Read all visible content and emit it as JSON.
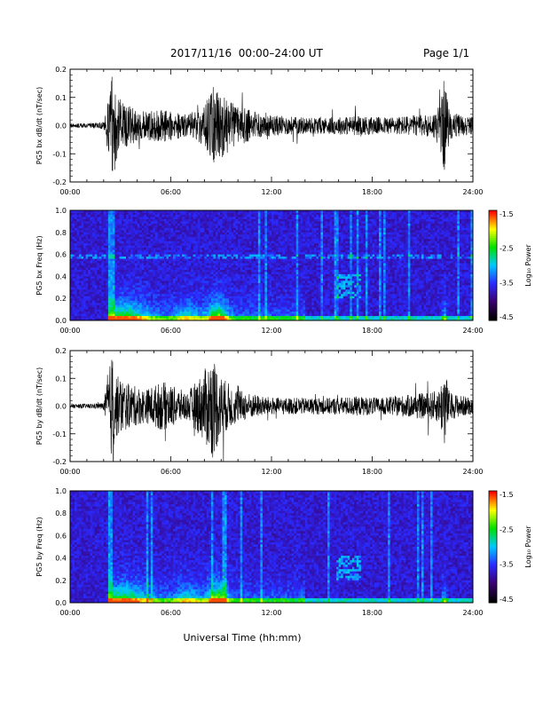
{
  "page": {
    "title": "2017/11/16  00:00–24:00 UT",
    "page_label": "Page 1/1",
    "xlabel": "Universal Time (hh:mm)"
  },
  "colorbar": {
    "label": "Log₁₀ Power",
    "ticks": [
      "-1.5",
      "-2.5",
      "-3.5",
      "-4.5"
    ],
    "range": [
      -4.5,
      -1.5
    ],
    "colormap": [
      "#000000",
      "#3a0070",
      "#2a2aff",
      "#00c8ff",
      "#00e000",
      "#ffff00",
      "#ff0000"
    ]
  },
  "chart_data": [
    {
      "type": "line",
      "id": "bx-waveform",
      "ylabel": "PG5 bx dB/dt (nT/sec)",
      "xlim": [
        0,
        24
      ],
      "ylim": [
        -0.2,
        0.2
      ],
      "xticks": [
        "00:00",
        "06:00",
        "12:00",
        "18:00",
        "24:00"
      ],
      "yticks": [
        "0.2",
        "0.1",
        "0.0",
        "-0.1",
        "-0.2"
      ],
      "envelope": {
        "x": [
          0,
          1,
          2,
          2.3,
          2.5,
          2.8,
          3.5,
          4.5,
          5.5,
          6.2,
          7.0,
          8.0,
          8.5,
          9.0,
          9.5,
          10.0,
          10.5,
          11.5,
          12.5,
          14.0,
          15.5,
          17.0,
          18.5,
          20.0,
          21.5,
          22.0,
          22.3,
          22.6,
          23.2,
          24.0
        ],
        "amp": [
          0.008,
          0.008,
          0.012,
          0.1,
          0.2,
          0.12,
          0.07,
          0.05,
          0.06,
          0.05,
          0.04,
          0.07,
          0.14,
          0.12,
          0.09,
          0.07,
          0.06,
          0.04,
          0.035,
          0.03,
          0.03,
          0.035,
          0.03,
          0.035,
          0.04,
          0.07,
          0.17,
          0.05,
          0.04,
          0.03
        ]
      },
      "color": "#000000"
    },
    {
      "type": "heatmap",
      "id": "bx-spectrogram",
      "ylabel": "PG5 bx Freq (Hz)",
      "xlim": [
        0,
        24
      ],
      "ylim": [
        0,
        1.0
      ],
      "xticks": [
        "00:00",
        "06:00",
        "12:00",
        "18:00",
        "24:00"
      ],
      "yticks": [
        "1.0",
        "0.8",
        "0.6",
        "0.4",
        "0.2",
        "0.0"
      ],
      "value_range": [
        -4.5,
        -1.5
      ]
    },
    {
      "type": "line",
      "id": "by-waveform",
      "ylabel": "PG5 by dB/dt (nT/sec)",
      "xlim": [
        0,
        24
      ],
      "ylim": [
        -0.2,
        0.2
      ],
      "xticks": [
        "00:00",
        "06:00",
        "12:00",
        "18:00",
        "24:00"
      ],
      "yticks": [
        "0.2",
        "0.1",
        "0.0",
        "-0.1",
        "-0.2"
      ],
      "envelope": {
        "x": [
          0,
          1,
          2,
          2.3,
          2.5,
          2.8,
          3.5,
          4.5,
          5.5,
          6.2,
          7.0,
          8.0,
          8.5,
          9.0,
          9.5,
          10.0,
          10.5,
          11.5,
          12.5,
          14.0,
          15.5,
          17.0,
          18.5,
          20.0,
          21.5,
          22.0,
          22.3,
          22.6,
          23.2,
          24.0
        ],
        "amp": [
          0.008,
          0.008,
          0.012,
          0.12,
          0.2,
          0.11,
          0.08,
          0.06,
          0.09,
          0.07,
          0.05,
          0.13,
          0.19,
          0.11,
          0.08,
          0.06,
          0.05,
          0.035,
          0.03,
          0.03,
          0.03,
          0.035,
          0.03,
          0.04,
          0.05,
          0.06,
          0.15,
          0.05,
          0.04,
          0.03
        ]
      },
      "color": "#000000"
    },
    {
      "type": "heatmap",
      "id": "by-spectrogram",
      "ylabel": "PG5 by Freq (Hz)",
      "xlim": [
        0,
        24
      ],
      "ylim": [
        0,
        1.0
      ],
      "xticks": [
        "00:00",
        "06:00",
        "12:00",
        "18:00",
        "24:00"
      ],
      "yticks": [
        "1.0",
        "0.8",
        "0.6",
        "0.4",
        "0.2",
        "0.0"
      ],
      "value_range": [
        -4.5,
        -1.5
      ]
    }
  ]
}
